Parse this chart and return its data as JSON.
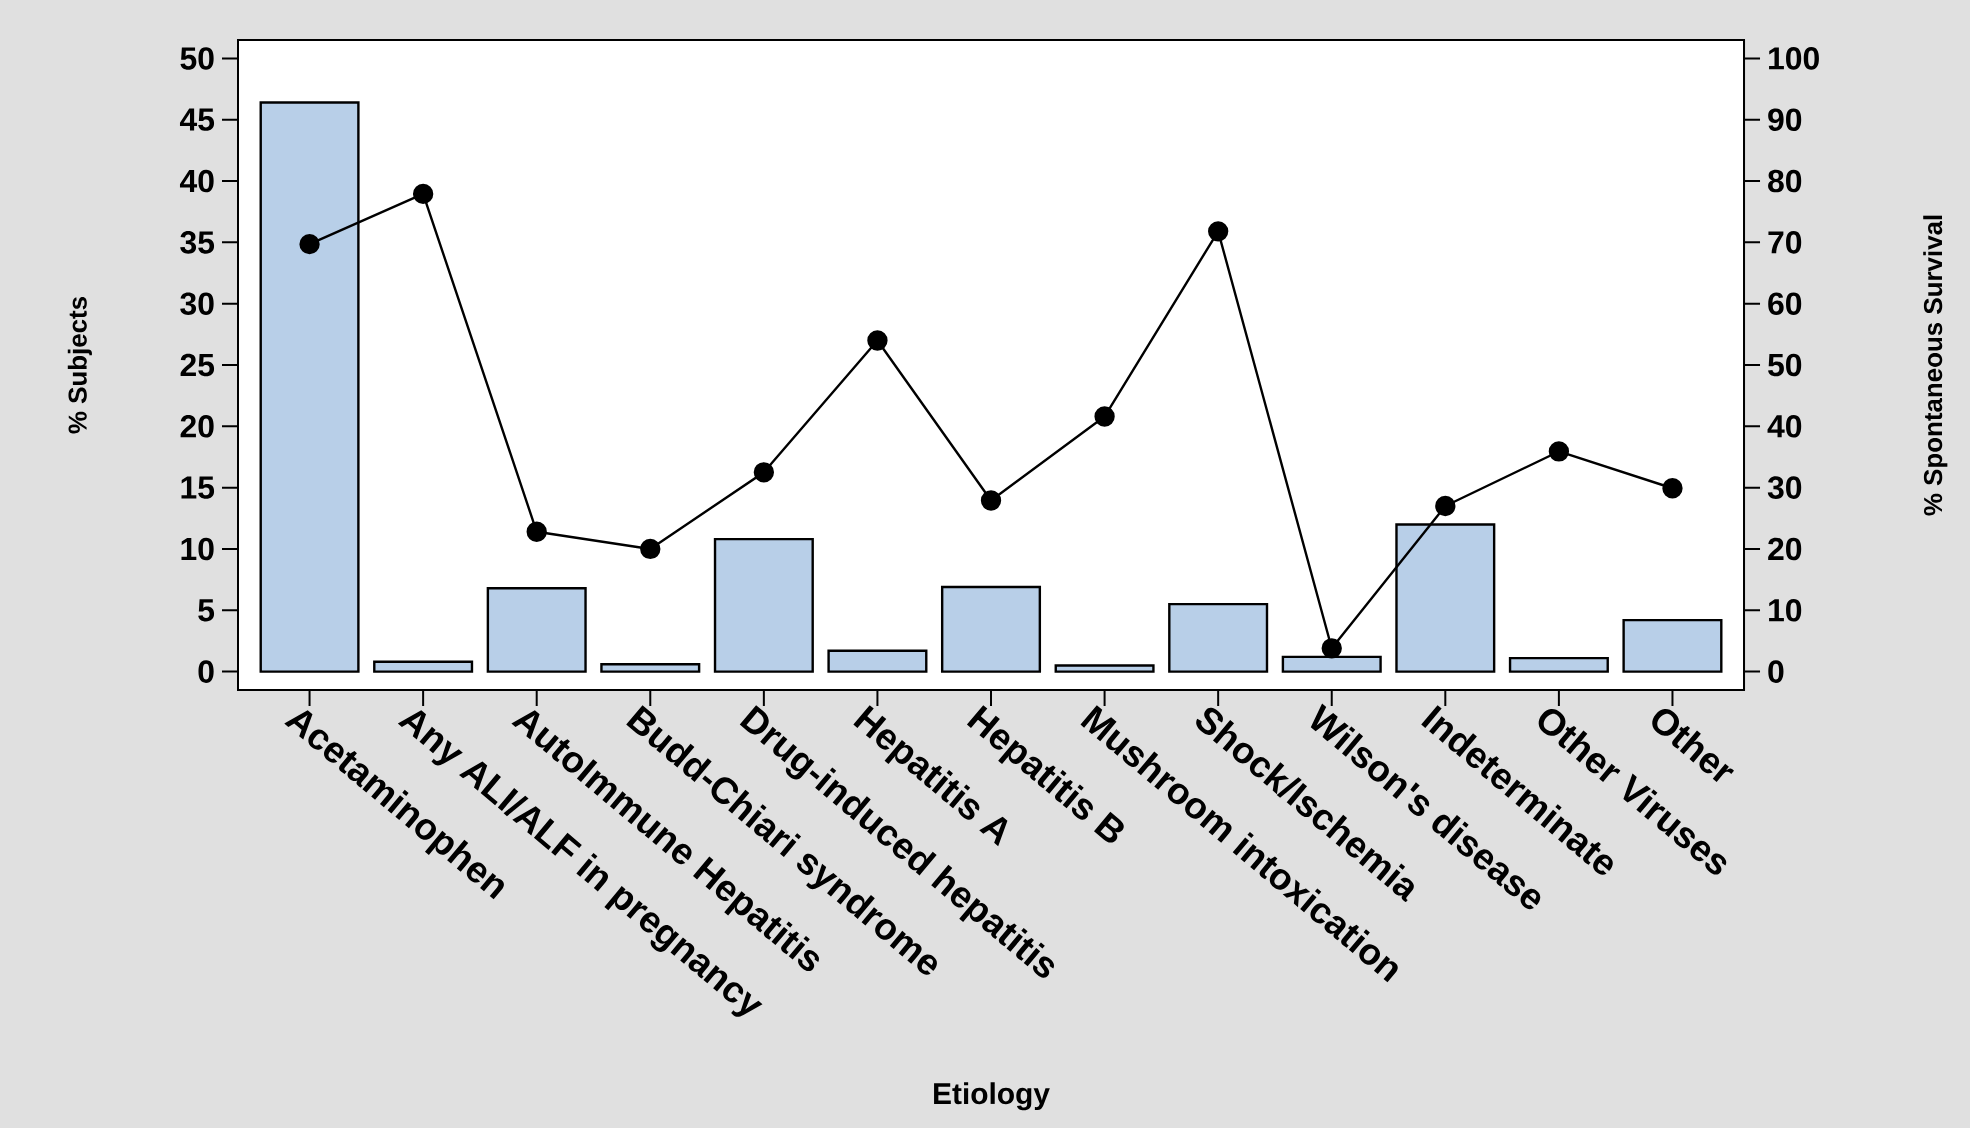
{
  "chart_data": {
    "type": "bar",
    "xlabel": "Etiology",
    "ylabel": "% Subjects",
    "y2label": "% Spontaneous Survival",
    "categories": [
      "Acetaminophen",
      "Any ALI/ALF in pregnancy",
      "AutoImmune Hepatitis",
      "Budd-Chiari syndrome",
      "Drug-induced hepatitis",
      "Hepatitis A",
      "Hepatitis B",
      "Mushroom intoxication",
      "Shock/Ischemia",
      "Wilson's disease",
      "Indeterminate",
      "Other Viruses",
      "Other"
    ],
    "series": [
      {
        "color": "#b8cfe8",
        "values": [
          46.4,
          0.8,
          6.8,
          0.6,
          10.8,
          1.7,
          6.9,
          0.5,
          5.5,
          1.2,
          12.0,
          1.1,
          4.2
        ]
      },
      {
        "type": "line",
        "axis": "y2",
        "color": "#000000",
        "marker": "circle",
        "line_style": "solid",
        "values": [
          69.7,
          77.9,
          22.8,
          20.0,
          32.5,
          54,
          27.9,
          41.6,
          71.8,
          3.8,
          27,
          35.9,
          29.9
        ]
      }
    ],
    "ylim": [
      -1.5,
      51.5
    ],
    "yticks": [
      0,
      5,
      10,
      15,
      20,
      25,
      30,
      35,
      40,
      45,
      50
    ],
    "y2lim": [
      -3,
      103
    ],
    "y2ticks": [
      0,
      10,
      20,
      30,
      40,
      50,
      60,
      70,
      80,
      90,
      100
    ]
  }
}
